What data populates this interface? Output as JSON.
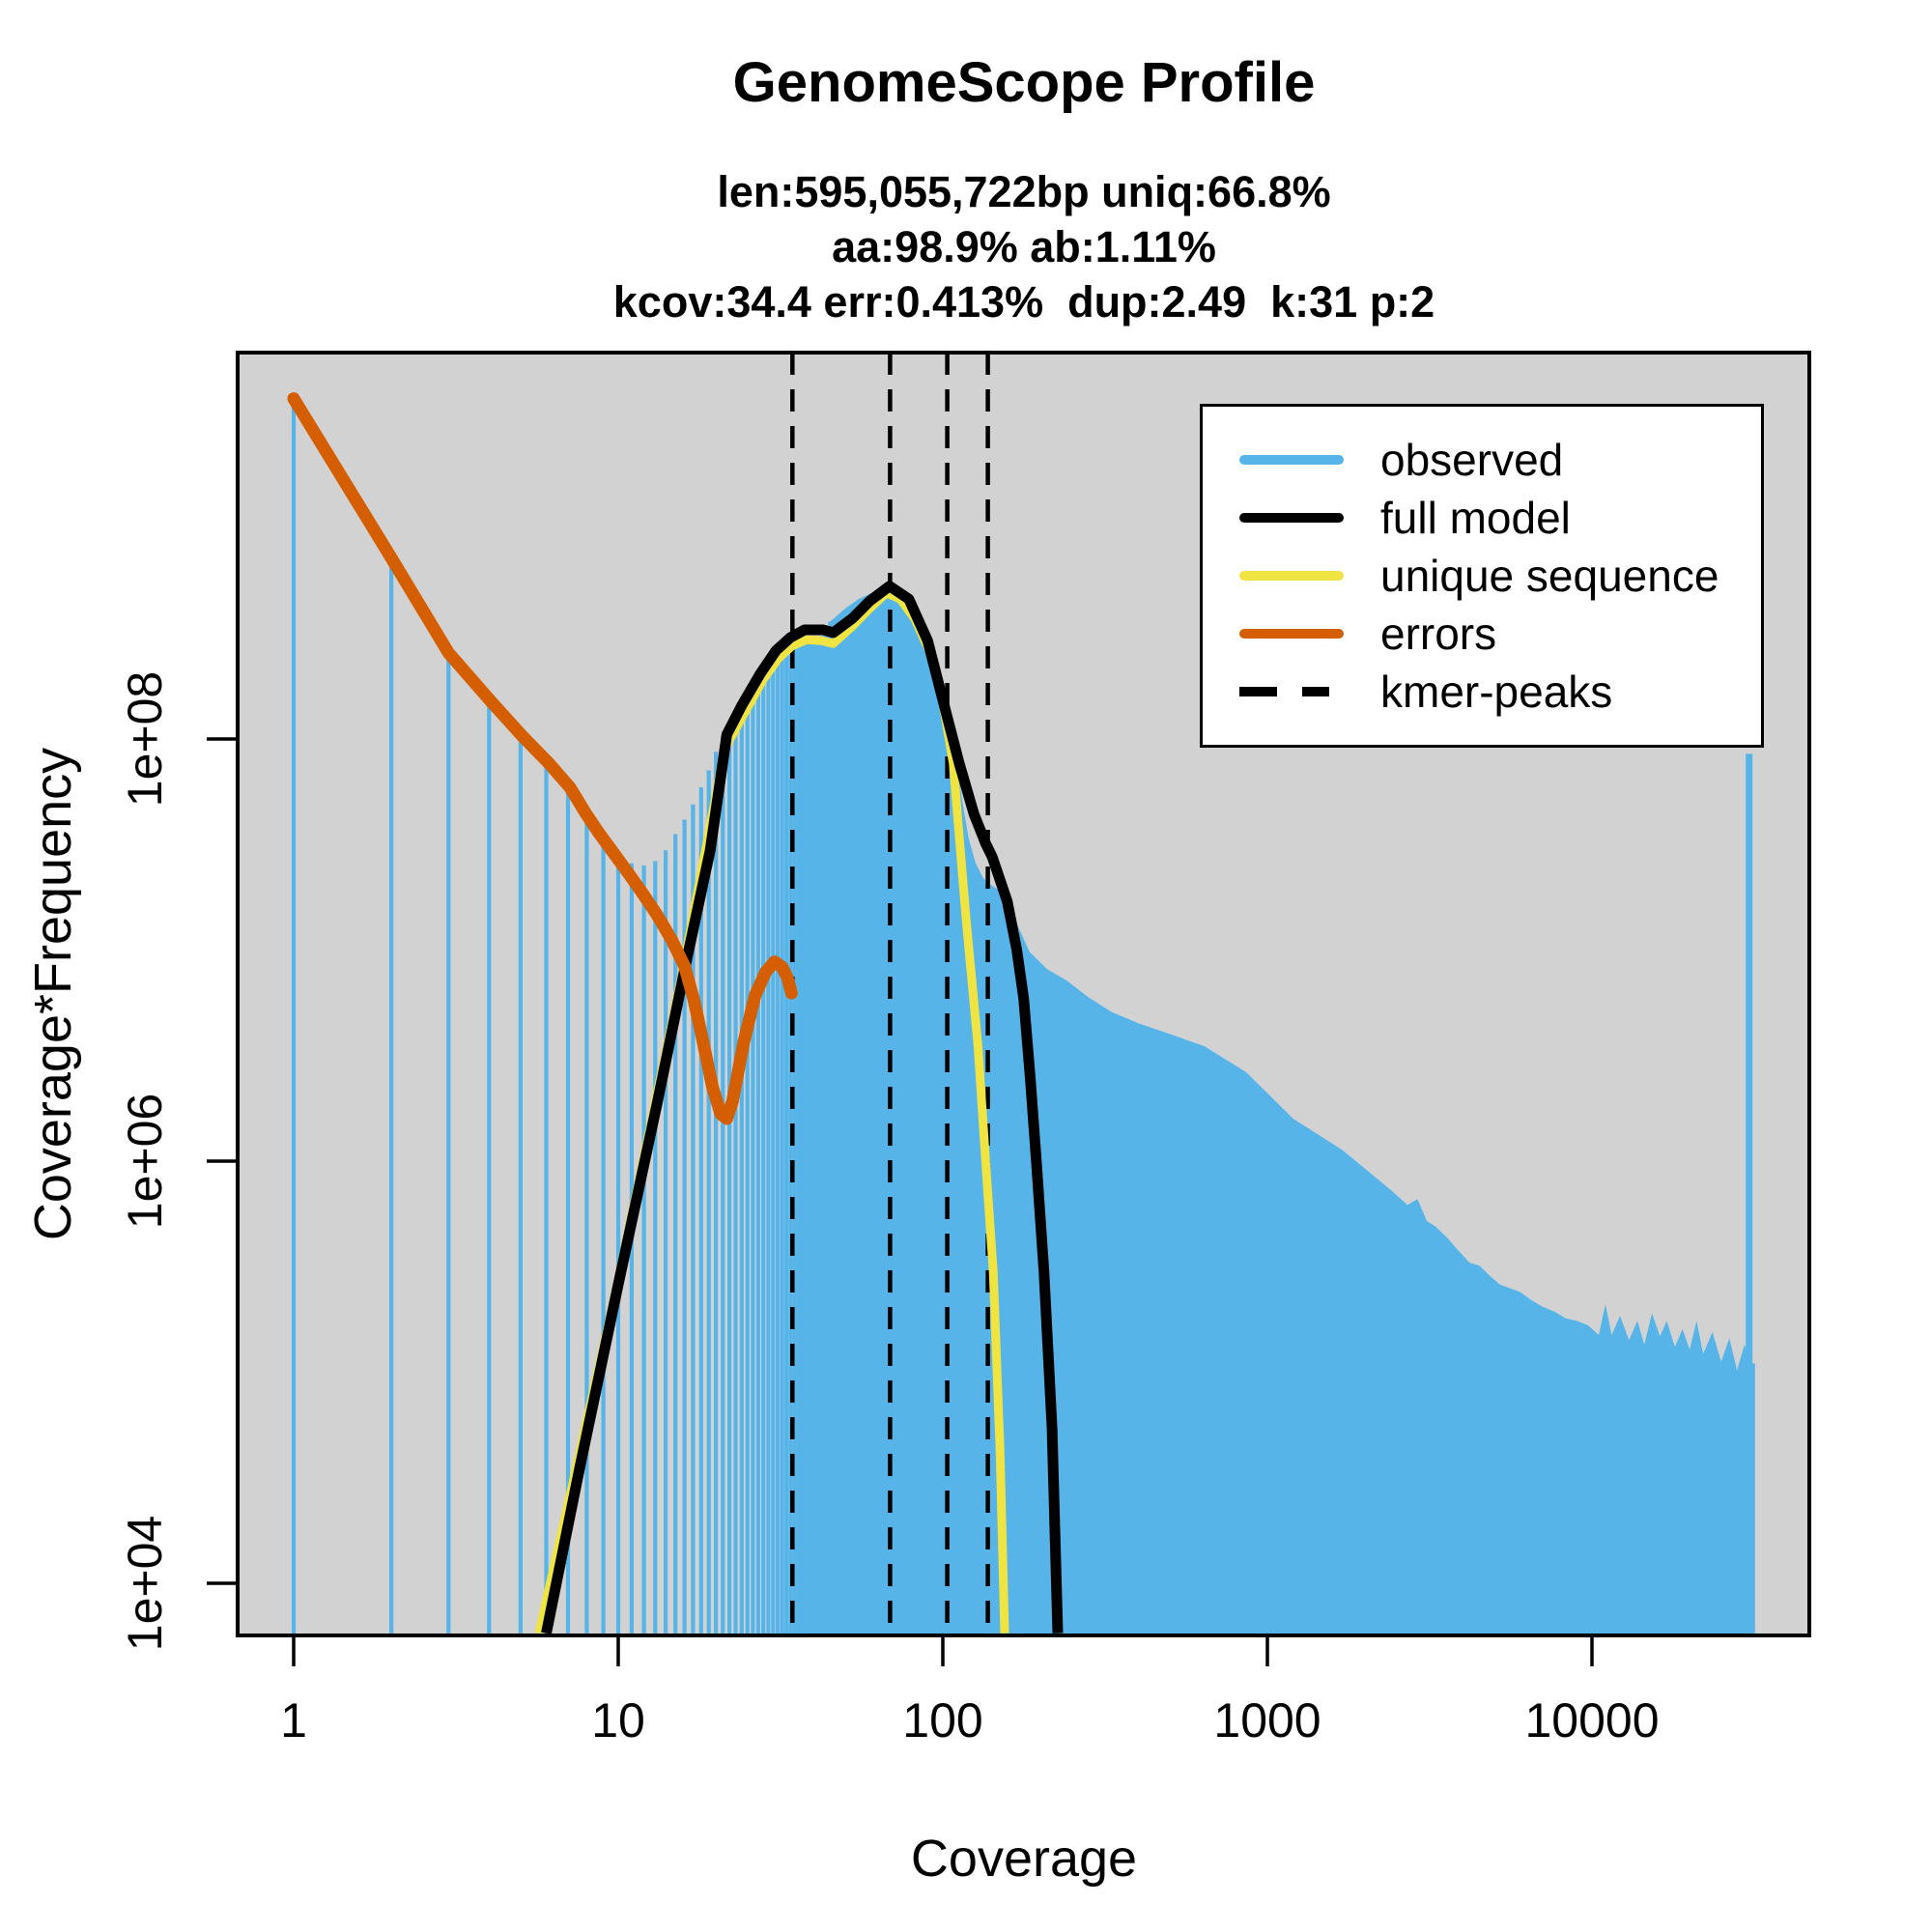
{
  "title": "GenomeScope Profile",
  "subtitle_lines": [
    "len:595,055,722bp uniq:66.8%",
    "aa:98.9% ab:1.11%",
    "kcov:34.4 err:0.413%  dup:2.49  k:31 p:2"
  ],
  "axes": {
    "xlabel": "Coverage",
    "ylabel": "Coverage*Frequency",
    "x_ticks": [
      "1",
      "10",
      "100",
      "1000",
      "10000"
    ],
    "y_ticks": [
      "1e+04",
      "1e+06",
      "1e+08"
    ]
  },
  "legend": {
    "items": [
      {
        "label": "observed",
        "color": "#56B4E9",
        "style": "solid"
      },
      {
        "label": "full model",
        "color": "#000000",
        "style": "solid"
      },
      {
        "label": "unique sequence",
        "color": "#F0E442",
        "style": "solid"
      },
      {
        "label": "errors",
        "color": "#D55E00",
        "style": "solid"
      },
      {
        "label": "kmer-peaks",
        "color": "#000000",
        "style": "dashed"
      }
    ]
  },
  "colors": {
    "observed": "#56B4E9",
    "full_model": "#000000",
    "unique_sequence": "#F0E442",
    "errors": "#D55E00",
    "panel_background": "#D2D2D2",
    "kmer_peak_line": "#000000"
  },
  "chart_data": {
    "type": "area",
    "title": "GenomeScope Profile",
    "xlabel": "Coverage",
    "ylabel": "Coverage*Frequency",
    "x_scale": "log",
    "y_scale": "log",
    "x_tick_values": [
      1,
      10,
      100,
      1000,
      10000
    ],
    "y_tick_values": [
      10000.0,
      1000000.0,
      100000000.0
    ],
    "xlim": [
      0.67,
      46700
    ],
    "ylim": [
      5700,
      6800000000.0
    ],
    "grid": false,
    "legend_position": "top-right",
    "kmer_peaks": [
      34.4,
      68.8,
      103.2,
      137.6
    ],
    "observed_bars": [
      4100000000.0,
      700000000.0,
      250000000.0,
      149000000.0,
      102000000.0,
      77000000.0,
      61000000.0,
      41000000.0,
      32400000.0,
      28000000.0,
      25800000.0,
      25200000.0,
      26400000.0,
      29700000.0,
      35400000.0,
      41500000.0,
      49000000.0,
      59000000.0,
      71000000.0,
      87000000.0,
      103000000.0,
      117000000.0,
      132000000.0,
      149000000.0,
      167000000.0,
      185000000.0,
      203000000.0,
      222000000.0,
      239000000.0,
      257000000.0,
      270000000.0,
      284000000.0,
      293000000.0,
      301000000.0,
      307000000.0,
      310000000.0,
      310000000.0,
      307000000.0,
      301000000.0,
      295000000.0,
      298000000.0,
      307000000.0,
      319000000.0,
      332000000.0,
      360000000.0
    ],
    "observed_envelope": [
      [
        45,
        360000000.0
      ],
      [
        50,
        415000000.0
      ],
      [
        55,
        460000000.0
      ],
      [
        60,
        490000000.0
      ],
      [
        64,
        500000000.0
      ],
      [
        68,
        507000000.0
      ],
      [
        72,
        500000000.0
      ],
      [
        78,
        450000000.0
      ],
      [
        85,
        360000000.0
      ],
      [
        90,
        290000000.0
      ],
      [
        95,
        220000000.0
      ],
      [
        100,
        165000000.0
      ],
      [
        105,
        120000000.0
      ],
      [
        110,
        80000000.0
      ],
      [
        115,
        50000000.0
      ],
      [
        120,
        34000000.0
      ],
      [
        126,
        26000000.0
      ],
      [
        133,
        22000000.0
      ],
      [
        140,
        20500000.0
      ],
      [
        150,
        19000000.0
      ],
      [
        165,
        14500000.0
      ],
      [
        185,
        9800000.0
      ],
      [
        210,
        8100000.0
      ],
      [
        240,
        7200000.0
      ],
      [
        280,
        6000000.0
      ],
      [
        330,
        5100000.0
      ],
      [
        400,
        4500000.0
      ],
      [
        500,
        4000000.0
      ],
      [
        640,
        3500000.0
      ],
      [
        860,
        2640000.0
      ],
      [
        1200,
        1590000.0
      ],
      [
        1700,
        1130000.0
      ],
      [
        2400,
        730000.0
      ],
      [
        2700,
        620000.0
      ],
      [
        2900,
        660000.0
      ],
      [
        3100,
        520000.0
      ],
      [
        3300,
        490000.0
      ],
      [
        3600,
        430000.0
      ],
      [
        3800,
        390000.0
      ],
      [
        4200,
        330000.0
      ],
      [
        4500,
        320000.0
      ],
      [
        4800,
        290000.0
      ],
      [
        5200,
        260000.0
      ],
      [
        5600,
        250000.0
      ],
      [
        6000,
        240000.0
      ],
      [
        6500,
        220000.0
      ],
      [
        7000,
        205000.0
      ],
      [
        7700,
        193000.0
      ],
      [
        8300,
        180000.0
      ],
      [
        9000,
        175000.0
      ],
      [
        9700,
        167000.0
      ],
      [
        10500,
        150000.0
      ],
      [
        11000,
        210000.0
      ],
      [
        11500,
        150000.0
      ],
      [
        12200,
        185000.0
      ],
      [
        13000,
        142000.0
      ],
      [
        13800,
        175000.0
      ],
      [
        14500,
        135000.0
      ],
      [
        15300,
        190000.0
      ],
      [
        16200,
        148000.0
      ],
      [
        17000,
        175000.0
      ],
      [
        18000,
        132000.0
      ],
      [
        19000,
        160000.0
      ],
      [
        20000,
        128000.0
      ],
      [
        21000,
        175000.0
      ],
      [
        22000,
        122000.0
      ],
      [
        23500,
        155000.0
      ],
      [
        25000,
        112000.0
      ],
      [
        26500,
        145000.0
      ],
      [
        28000,
        102000.0
      ],
      [
        29500,
        135000.0
      ],
      [
        31000,
        110000.0
      ],
      [
        31800,
        110000.0
      ]
    ],
    "cap_spike": {
      "coverage": 30500,
      "value": 85000000.0
    },
    "full_model": [
      [
        6.0,
        5800.0
      ],
      [
        7.6,
        35000.0
      ],
      [
        10,
        260000.0
      ],
      [
        13.2,
        1900000.0
      ],
      [
        16.1,
        8400000.0
      ],
      [
        19.2,
        29700000.0
      ],
      [
        21.6,
        105000000.0
      ],
      [
        24,
        144000000.0
      ],
      [
        27.4,
        204000000.0
      ],
      [
        30.6,
        262000000.0
      ],
      [
        33.9,
        302000000.0
      ],
      [
        37.5,
        329000000.0
      ],
      [
        42.8,
        329000000.0
      ],
      [
        46,
        319000000.0
      ],
      [
        52.8,
        374000000.0
      ],
      [
        59.5,
        450000000.0
      ],
      [
        68.5,
        530000000.0
      ],
      [
        78.6,
        460000000.0
      ],
      [
        89.8,
        292000000.0
      ],
      [
        101.5,
        140000000.0
      ],
      [
        112.3,
        77000000.0
      ],
      [
        124.8,
        44000000.0
      ],
      [
        135.5,
        32000000.0
      ],
      [
        142,
        27600000.0
      ],
      [
        158,
        17000000.0
      ],
      [
        169,
        10000000.0
      ],
      [
        177.5,
        5900000.0
      ],
      [
        186,
        2450000.0
      ],
      [
        194,
        1020000.0
      ],
      [
        205,
        300000.0
      ],
      [
        217,
        54000.0
      ],
      [
        226,
        5800.0
      ]
    ],
    "unique_sequence": [
      [
        5.7,
        5800.0
      ],
      [
        9.7,
        220000.0
      ],
      [
        15.7,
        7600000.0
      ],
      [
        21.3,
        90000000.0
      ],
      [
        24.3,
        130000000.0
      ],
      [
        28,
        192000000.0
      ],
      [
        31.2,
        241000000.0
      ],
      [
        34.3,
        276000000.0
      ],
      [
        38,
        295000000.0
      ],
      [
        42.3,
        292000000.0
      ],
      [
        45.9,
        283000000.0
      ],
      [
        51.9,
        335000000.0
      ],
      [
        59.5,
        415000000.0
      ],
      [
        67,
        492000000.0
      ],
      [
        74,
        460000000.0
      ],
      [
        82,
        370000000.0
      ],
      [
        91,
        260000000.0
      ],
      [
        99,
        163000000.0
      ],
      [
        107.6,
        77000000.0
      ],
      [
        117.9,
        14200000.0
      ],
      [
        128.3,
        3500000.0
      ],
      [
        135.5,
        1000000.0
      ],
      [
        143,
        300000.0
      ],
      [
        150,
        43000.0
      ],
      [
        155,
        5800.0
      ]
    ],
    "errors": [
      [
        1,
        4100000000.0
      ],
      [
        2,
        720000000.0
      ],
      [
        3,
        256000000.0
      ],
      [
        4.08,
        149000000.0
      ],
      [
        5.07,
        103000000.0
      ],
      [
        6.1,
        77000000.0
      ],
      [
        7.1,
        59000000.0
      ],
      [
        7.9,
        45000000.0
      ],
      [
        8.7,
        36000000.0
      ],
      [
        9.65,
        29000000.0
      ],
      [
        10.7,
        23300000.0
      ],
      [
        11.9,
        18500000.0
      ],
      [
        13.2,
        14600000.0
      ],
      [
        14.6,
        11200000.0
      ],
      [
        16,
        8400000.0
      ],
      [
        17.1,
        5800000.0
      ],
      [
        18.3,
        3600000.0
      ],
      [
        19.5,
        2250000.0
      ],
      [
        20.7,
        1670000.0
      ],
      [
        21.6,
        1590000.0
      ],
      [
        22.5,
        1920000.0
      ],
      [
        24.3,
        3600000.0
      ],
      [
        26.4,
        6100000.0
      ],
      [
        28.5,
        7900000.0
      ],
      [
        30.3,
        8800000.0
      ],
      [
        32,
        8300000.0
      ],
      [
        33.2,
        7400000.0
      ],
      [
        34.2,
        6250000.0
      ]
    ]
  }
}
